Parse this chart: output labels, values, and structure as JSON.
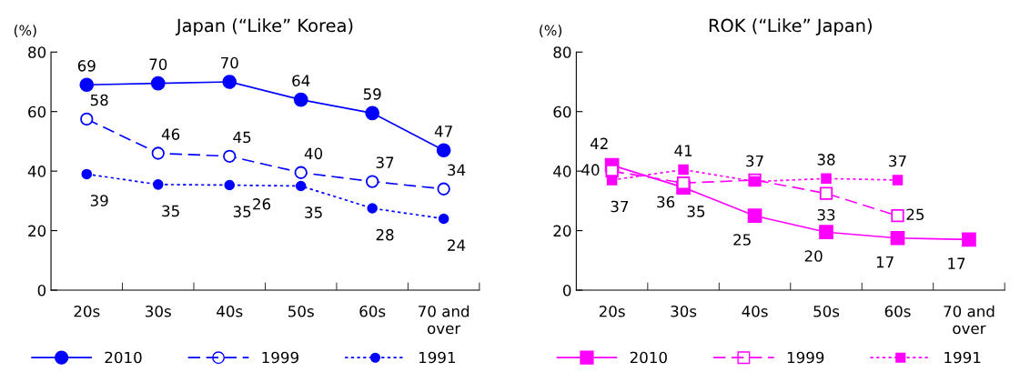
{
  "chart_data": [
    {
      "type": "line",
      "title": "Japan (“Like” Korea)",
      "ylabel": "(%)",
      "categories": [
        "20s",
        "30s",
        "40s",
        "50s",
        "60s",
        "70 and\nover"
      ],
      "ylim": [
        0,
        80
      ],
      "yticks": [
        0,
        20,
        40,
        60,
        80
      ],
      "legend": "bottom",
      "grid": false,
      "annotations": [
        "26"
      ],
      "series": [
        {
          "name": "2010",
          "color": "#0000ff",
          "marker": "circle",
          "line_style": "solid",
          "values": [
            69,
            69.5,
            70,
            64,
            59.5,
            47
          ],
          "value_labels": [
            "69",
            "70",
            "70",
            "64",
            "59",
            "47"
          ]
        },
        {
          "name": "1999",
          "color": "#0000ff",
          "marker": "circle",
          "line_style": "dashed",
          "values": [
            57.5,
            46,
            45,
            39.5,
            36.5,
            34
          ],
          "value_labels": [
            "58",
            "46",
            "45",
            "40",
            "37",
            "34"
          ]
        },
        {
          "name": "1991",
          "color": "#0000ff",
          "marker": "circle",
          "line_style": "dotted",
          "values": [
            39,
            35.5,
            35.3,
            35,
            27.5,
            24
          ],
          "value_labels": [
            "39",
            "35",
            "35",
            "35",
            "28",
            "24"
          ]
        }
      ]
    },
    {
      "type": "line",
      "title": "ROK (“Like” Japan)",
      "ylabel": "(%)",
      "categories": [
        "20s",
        "30s",
        "40s",
        "50s",
        "60s",
        "70 and\nover"
      ],
      "ylim": [
        0,
        80
      ],
      "yticks": [
        0,
        20,
        40,
        60,
        80
      ],
      "legend": "bottom",
      "grid": false,
      "series": [
        {
          "name": "2010",
          "color": "#ff00ff",
          "marker": "square",
          "line_style": "solid",
          "values": [
            42,
            34.5,
            25,
            19.5,
            17.5,
            17
          ],
          "value_labels": [
            "42",
            "35",
            "25",
            "20",
            "17",
            "17"
          ]
        },
        {
          "name": "1999",
          "color": "#ff00ff",
          "marker": "square",
          "line_style": "dashed",
          "values": [
            40,
            36,
            37,
            32.5,
            25,
            null
          ],
          "value_labels": [
            "40",
            "36",
            "37",
            "33",
            "25",
            null
          ]
        },
        {
          "name": "1991",
          "color": "#ff00ff",
          "marker": "square",
          "line_style": "dotted",
          "values": [
            37,
            40.5,
            36.5,
            37.5,
            37,
            null
          ],
          "value_labels": [
            "37",
            "41",
            null,
            "38",
            "37",
            null
          ]
        }
      ]
    }
  ]
}
